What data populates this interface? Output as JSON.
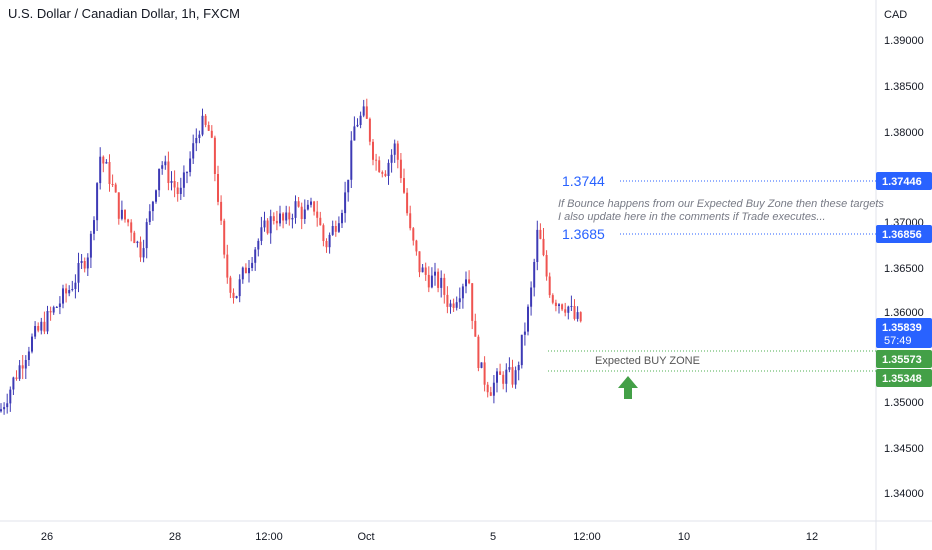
{
  "header": {
    "title": "U.S. Dollar / Canadian Dollar, 1h, FXCM"
  },
  "price_axis": {
    "currency": "CAD",
    "ticks": [
      "1.39000",
      "1.38500",
      "1.38000",
      "1.37000",
      "1.36500",
      "1.36000",
      "1.35000",
      "1.34500",
      "1.34000"
    ]
  },
  "time_axis": {
    "ticks": [
      "26",
      "28",
      "12:00",
      "Oct",
      "5",
      "12:00",
      "10",
      "12"
    ]
  },
  "colors": {
    "up_candle": "#3d3ab5",
    "down_candle": "#ef5350",
    "target_line": "#2962ff",
    "zone_line": "#4caf50",
    "arrow": "#43a047",
    "axis_text": "#131722",
    "annotation_text": "#787b86"
  },
  "badges": {
    "current_price": "1.35839",
    "countdown": "57:49",
    "target_upper": "1.37446",
    "target_lower": "1.36856",
    "zone_upper": "1.35573",
    "zone_lower": "1.35348"
  },
  "annotations": {
    "target1_label": "1.3744",
    "target2_label": "1.3685",
    "note_line1": "If Bounce happens from our Expected Buy Zone then these targets",
    "note_line2": "I also update here in the comments if Trade executes...",
    "zone_label": "Expected BUY ZONE"
  },
  "chart_data": {
    "type": "candlestick",
    "title": "U.S. Dollar / Canadian Dollar, 1h, FXCM",
    "y_unit": "CAD",
    "ylim": [
      1.3365,
      1.3935
    ],
    "x_tick_labels": [
      "26",
      "28",
      "12:00",
      "Oct",
      "5",
      "12:00",
      "10",
      "12"
    ],
    "price_path": [
      [
        0,
        1.3485
      ],
      [
        10,
        1.351
      ],
      [
        20,
        1.3535
      ],
      [
        30,
        1.356
      ],
      [
        40,
        1.3575
      ],
      [
        50,
        1.359
      ],
      [
        60,
        1.3605
      ],
      [
        70,
        1.362
      ],
      [
        80,
        1.364
      ],
      [
        90,
        1.3665
      ],
      [
        100,
        1.3765
      ],
      [
        110,
        1.374
      ],
      [
        120,
        1.37
      ],
      [
        130,
        1.369
      ],
      [
        140,
        1.366
      ],
      [
        150,
        1.37
      ],
      [
        160,
        1.376
      ],
      [
        170,
        1.374
      ],
      [
        180,
        1.372
      ],
      [
        190,
        1.376
      ],
      [
        200,
        1.38
      ],
      [
        210,
        1.379
      ],
      [
        218,
        1.372
      ],
      [
        225,
        1.364
      ],
      [
        235,
        1.361
      ],
      [
        245,
        1.364
      ],
      [
        255,
        1.3665
      ],
      [
        265,
        1.3685
      ],
      [
        275,
        1.37
      ],
      [
        285,
        1.369
      ],
      [
        295,
        1.371
      ],
      [
        305,
        1.37
      ],
      [
        315,
        1.371
      ],
      [
        325,
        1.3665
      ],
      [
        335,
        1.369
      ],
      [
        345,
        1.372
      ],
      [
        355,
        1.38
      ],
      [
        365,
        1.381
      ],
      [
        375,
        1.376
      ],
      [
        385,
        1.375
      ],
      [
        395,
        1.3775
      ],
      [
        402,
        1.374
      ],
      [
        410,
        1.368
      ],
      [
        420,
        1.364
      ],
      [
        430,
        1.363
      ],
      [
        440,
        1.3625
      ],
      [
        450,
        1.36
      ],
      [
        460,
        1.362
      ],
      [
        468,
        1.364
      ],
      [
        475,
        1.356
      ],
      [
        482,
        1.3525
      ],
      [
        490,
        1.351
      ],
      [
        498,
        1.352
      ],
      [
        506,
        1.3525
      ],
      [
        515,
        1.352
      ],
      [
        522,
        1.356
      ],
      [
        530,
        1.3605
      ],
      [
        538,
        1.3685
      ],
      [
        545,
        1.364
      ],
      [
        552,
        1.361
      ],
      [
        560,
        1.3605
      ],
      [
        568,
        1.36
      ],
      [
        575,
        1.3585
      ],
      [
        581,
        1.3584
      ]
    ],
    "horizontal_levels": [
      {
        "label": "1.3744",
        "value": 1.37446
      },
      {
        "label": "1.3685",
        "value": 1.36856
      },
      {
        "label": "Expected BUY ZONE",
        "value": 1.35573
      },
      {
        "label": "Expected BUY ZONE",
        "value": 1.35348
      }
    ],
    "current_price": 1.35839
  }
}
